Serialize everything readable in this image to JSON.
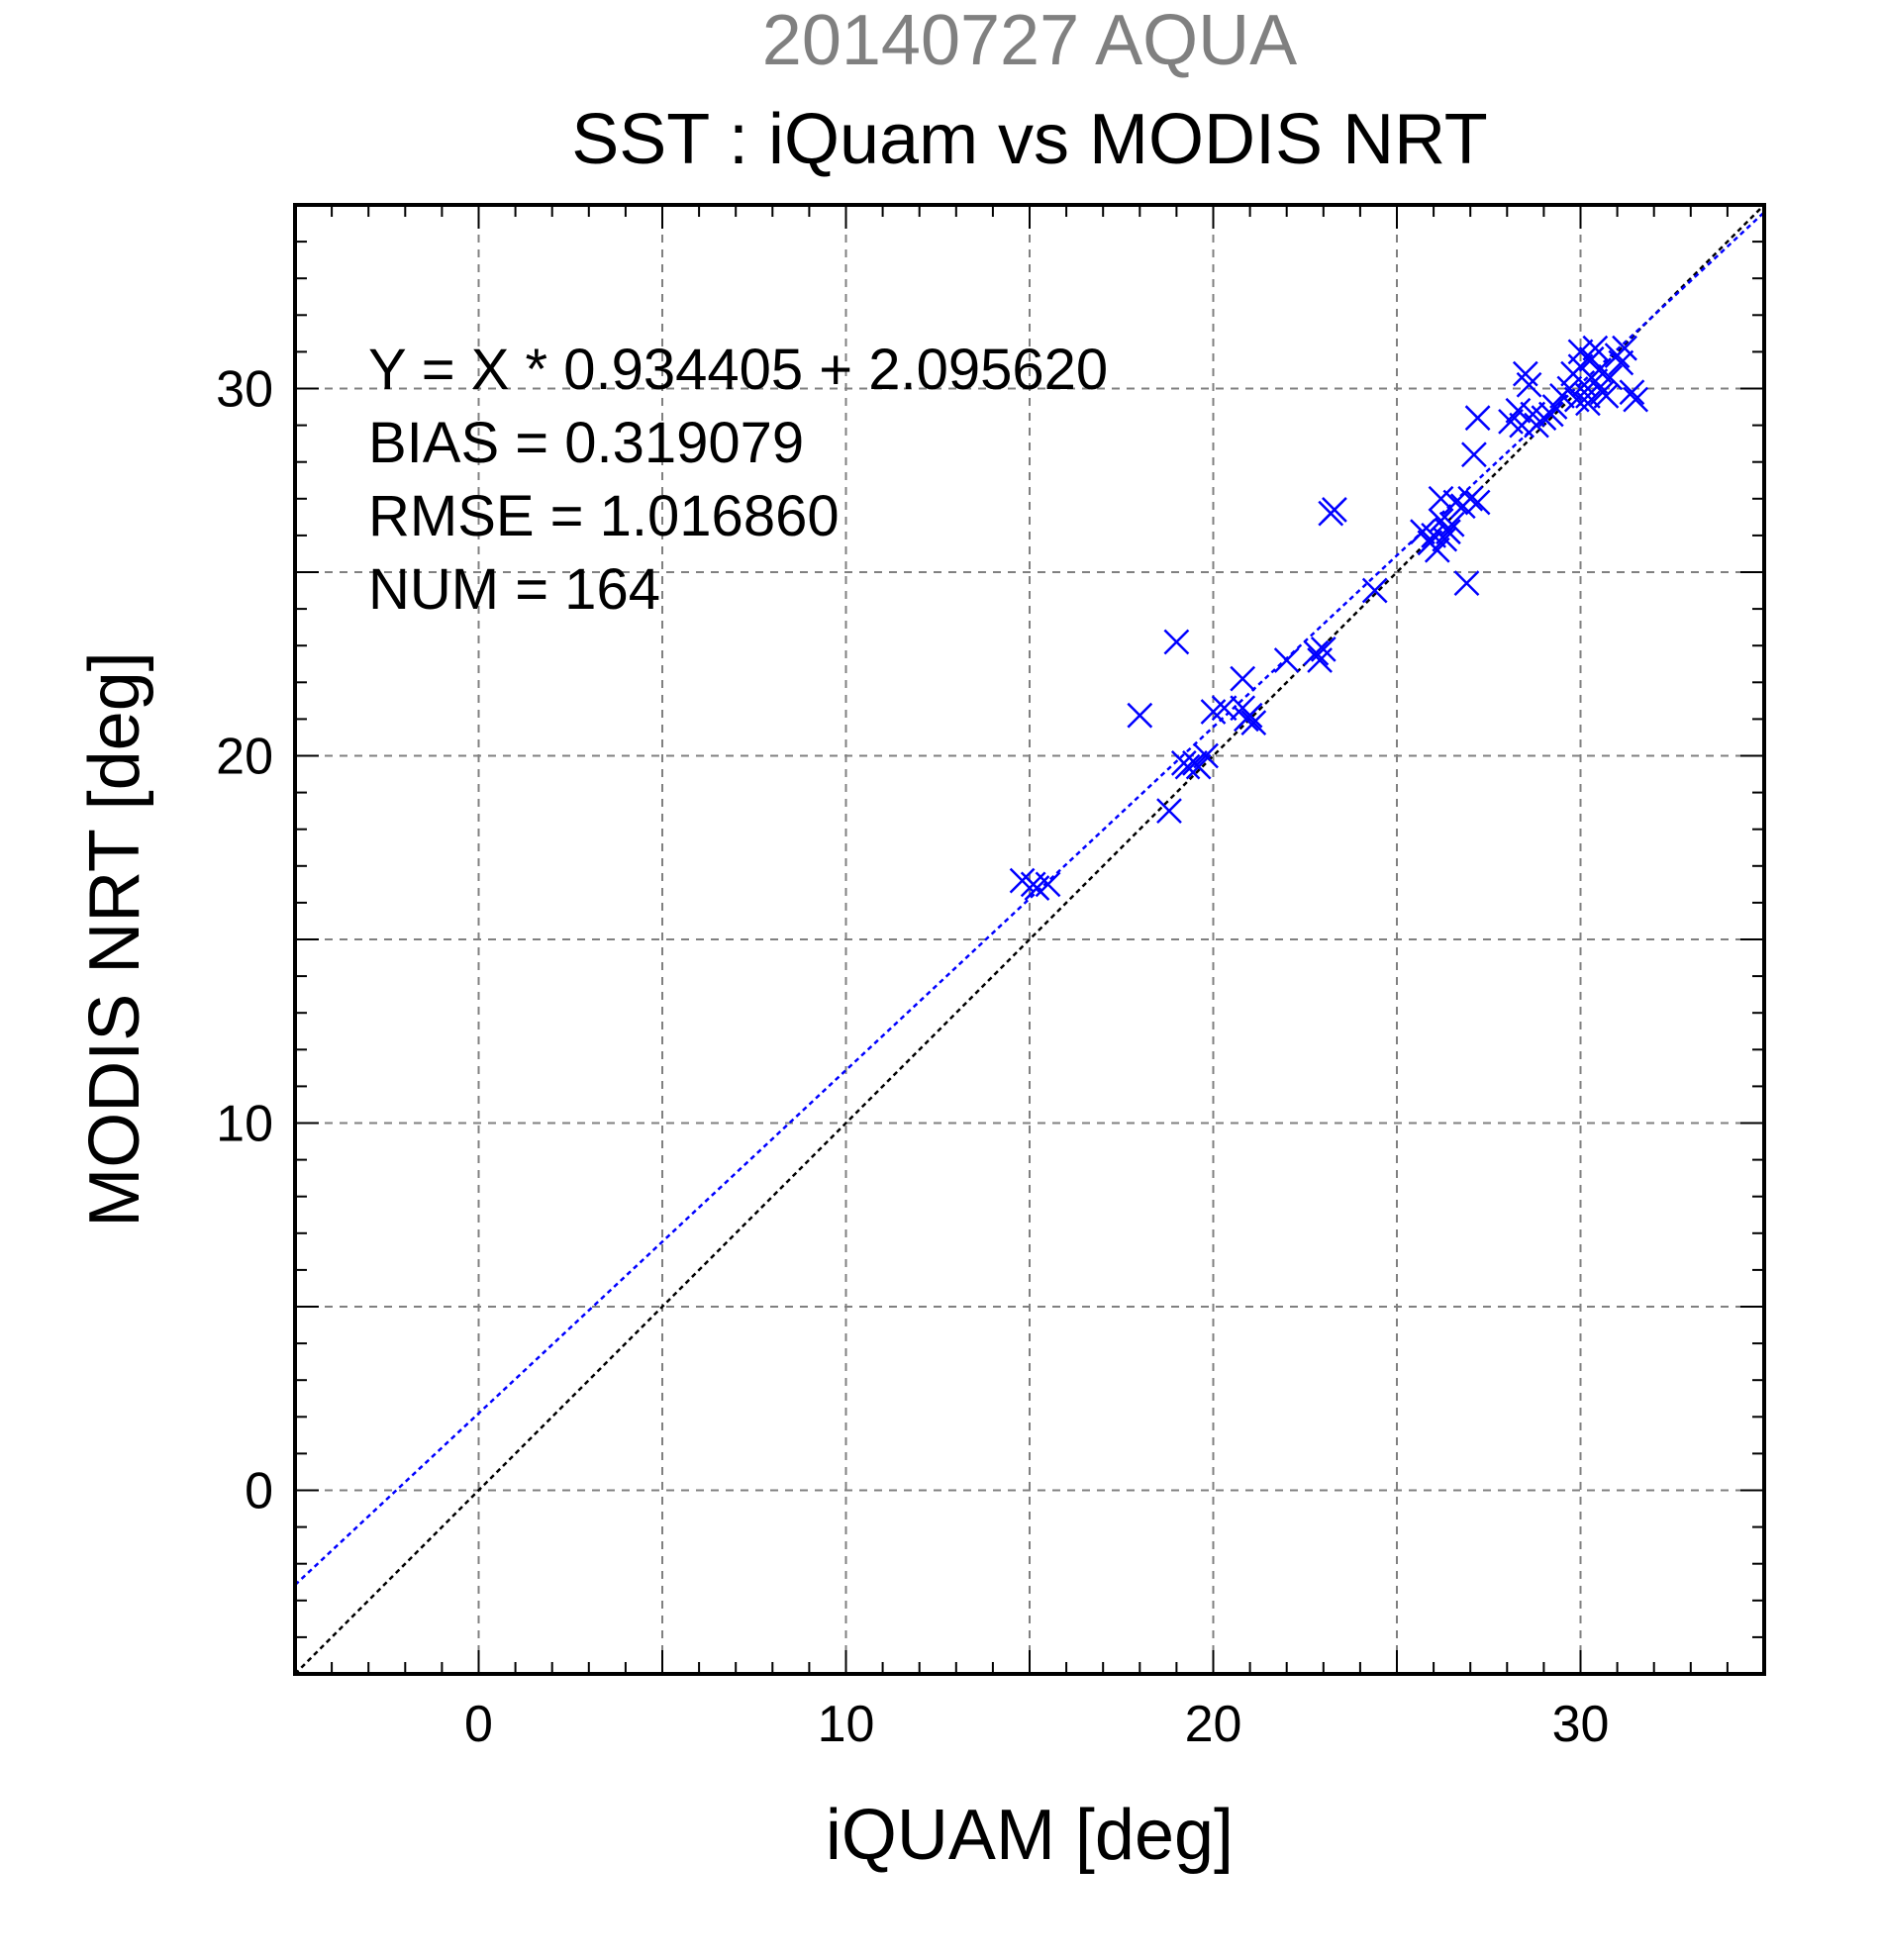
{
  "colors": {
    "points": "#0000ff",
    "fit_line": "#0000ff",
    "identity_line": "#000000",
    "grid": "#808080",
    "supertitle": "#808080"
  },
  "chart_data": {
    "type": "scatter",
    "supertitle": "20140727 AQUA",
    "title": "SST : iQuam vs MODIS NRT",
    "xlabel": "iQUAM [deg]",
    "ylabel": "MODIS NRT [deg]",
    "xlim": [
      -5,
      35
    ],
    "ylim": [
      -5,
      35
    ],
    "xticks": [
      0,
      10,
      20,
      30
    ],
    "yticks": [
      0,
      10,
      20,
      30
    ],
    "xtick_labels": [
      "0",
      "10",
      "20",
      "30"
    ],
    "ytick_labels": [
      "0",
      "10",
      "20",
      "30"
    ],
    "grid": true,
    "marker": "x",
    "annotations": [
      "Y = X * 0.934405 + 2.095620",
      "BIAS = 0.319079",
      "RMSE = 1.016860",
      "NUM = 164"
    ],
    "fit": {
      "slope": 0.934405,
      "intercept": 2.09562
    },
    "identity_line": true,
    "points": [
      [
        14.8,
        16.6
      ],
      [
        15.1,
        16.5
      ],
      [
        15.2,
        16.4
      ],
      [
        15.5,
        16.5
      ],
      [
        18.0,
        21.1
      ],
      [
        18.8,
        18.5
      ],
      [
        19.0,
        23.1
      ],
      [
        19.2,
        19.8
      ],
      [
        19.3,
        19.7
      ],
      [
        19.5,
        19.8
      ],
      [
        19.6,
        19.7
      ],
      [
        19.8,
        20.0
      ],
      [
        20.0,
        21.2
      ],
      [
        20.3,
        21.3
      ],
      [
        20.8,
        22.1
      ],
      [
        20.8,
        21.3
      ],
      [
        20.9,
        21.0
      ],
      [
        21.0,
        21.1
      ],
      [
        21.1,
        20.9
      ],
      [
        22.0,
        22.6
      ],
      [
        22.8,
        22.8
      ],
      [
        22.9,
        22.6
      ],
      [
        23.0,
        22.9
      ],
      [
        23.2,
        26.6
      ],
      [
        23.3,
        26.7
      ],
      [
        24.4,
        24.5
      ],
      [
        25.7,
        26.1
      ],
      [
        25.9,
        25.8
      ],
      [
        26.0,
        26.0
      ],
      [
        26.1,
        25.6
      ],
      [
        26.2,
        26.4
      ],
      [
        26.3,
        25.9
      ],
      [
        26.4,
        26.1
      ],
      [
        26.5,
        26.3
      ],
      [
        26.2,
        27.0
      ],
      [
        26.6,
        26.9
      ],
      [
        26.8,
        26.8
      ],
      [
        27.0,
        27.0
      ],
      [
        27.2,
        26.9
      ],
      [
        26.9,
        24.7
      ],
      [
        27.1,
        28.2
      ],
      [
        27.2,
        29.2
      ],
      [
        28.1,
        29.1
      ],
      [
        28.3,
        29.4
      ],
      [
        28.4,
        29.0
      ],
      [
        28.5,
        30.4
      ],
      [
        28.6,
        30.1
      ],
      [
        28.7,
        29.3
      ],
      [
        28.8,
        29.0
      ],
      [
        29.0,
        29.2
      ],
      [
        29.2,
        29.3
      ],
      [
        29.3,
        29.5
      ],
      [
        29.5,
        29.8
      ],
      [
        29.7,
        30.0
      ],
      [
        29.8,
        30.4
      ],
      [
        30.0,
        30.6
      ],
      [
        30.0,
        31.0
      ],
      [
        30.1,
        30.1
      ],
      [
        30.2,
        29.8
      ],
      [
        30.3,
        30.8
      ],
      [
        30.4,
        31.1
      ],
      [
        30.5,
        30.5
      ],
      [
        30.6,
        29.9
      ],
      [
        30.8,
        30.3
      ],
      [
        31.0,
        30.9
      ],
      [
        31.1,
        30.7
      ],
      [
        31.2,
        31.1
      ],
      [
        31.4,
        29.9
      ],
      [
        31.5,
        29.7
      ],
      [
        29.9,
        29.7
      ],
      [
        30.2,
        29.6
      ],
      [
        30.7,
        29.8
      ],
      [
        30.4,
        30.2
      ]
    ]
  }
}
